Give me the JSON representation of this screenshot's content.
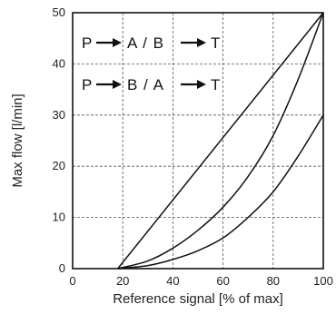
{
  "chart_data": {
    "type": "line",
    "title": "",
    "xlabel": "Reference signal [% of max]",
    "ylabel": "Max flow [l/min]",
    "xlim": [
      0,
      100
    ],
    "ylim": [
      0,
      50
    ],
    "x_ticks": [
      "0",
      "20",
      "40",
      "60",
      "80",
      "100"
    ],
    "y_ticks": [
      "0",
      "10",
      "20",
      "30",
      "40",
      "50"
    ],
    "grid": true,
    "series": [
      {
        "x": [
          18,
          100
        ],
        "y": [
          0,
          50
        ]
      },
      {
        "x": [
          18,
          30,
          40,
          50,
          60,
          70,
          80,
          90,
          100
        ],
        "y": [
          0,
          1.5,
          4,
          7.5,
          12,
          18,
          26,
          37,
          50
        ]
      },
      {
        "x": [
          18,
          30,
          40,
          50,
          60,
          70,
          80,
          90,
          100
        ],
        "y": [
          0,
          0.6,
          1.8,
          3.5,
          6,
          10,
          15,
          22,
          30
        ]
      }
    ],
    "annotations": [
      {
        "text": "P → A / B → T",
        "label": [
          "P",
          "A / B",
          "T"
        ]
      },
      {
        "text": "P → B / A → T",
        "label": [
          "P",
          "B / A",
          "T"
        ]
      }
    ]
  }
}
